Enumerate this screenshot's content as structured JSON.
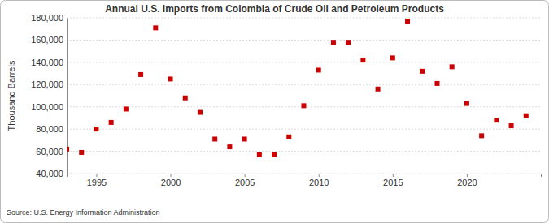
{
  "chart_data": {
    "type": "scatter",
    "title": "Annual U.S. Imports from Colombia of Crude Oil and Petroleum Products",
    "y_label": "Thousand Barrels",
    "source": "Source: U.S. Energy Information Administration",
    "x": [
      1993,
      1994,
      1995,
      1996,
      1997,
      1998,
      1999,
      2000,
      2001,
      2002,
      2003,
      2004,
      2005,
      2006,
      2007,
      2008,
      2009,
      2010,
      2011,
      2012,
      2013,
      2014,
      2015,
      2016,
      2017,
      2018,
      2019,
      2020,
      2021,
      2022,
      2023,
      2024
    ],
    "values": [
      62000,
      59000,
      80000,
      86000,
      98000,
      129000,
      171000,
      125000,
      108000,
      95000,
      71000,
      64000,
      71000,
      57000,
      57000,
      73000,
      101000,
      133000,
      158000,
      158000,
      142000,
      116000,
      144000,
      177000,
      132000,
      121000,
      136000,
      103000,
      74000,
      88000,
      83000,
      92000
    ],
    "color": "#cc0000",
    "marker": "square",
    "grid": true,
    "xlim": [
      1993,
      2025
    ],
    "xticks": [
      1995,
      2000,
      2005,
      2010,
      2015,
      2020
    ],
    "ylim": [
      40000,
      180000
    ],
    "yticks": [
      {
        "value": 40000,
        "label": "40,000"
      },
      {
        "value": 60000,
        "label": "60,000"
      },
      {
        "value": 80000,
        "label": "80,000"
      },
      {
        "value": 100000,
        "label": "100,000"
      },
      {
        "value": 120000,
        "label": "120,000"
      },
      {
        "value": 140000,
        "label": "140,000"
      },
      {
        "value": 160000,
        "label": "160,000"
      },
      {
        "value": 180000,
        "label": "180,000"
      }
    ]
  }
}
